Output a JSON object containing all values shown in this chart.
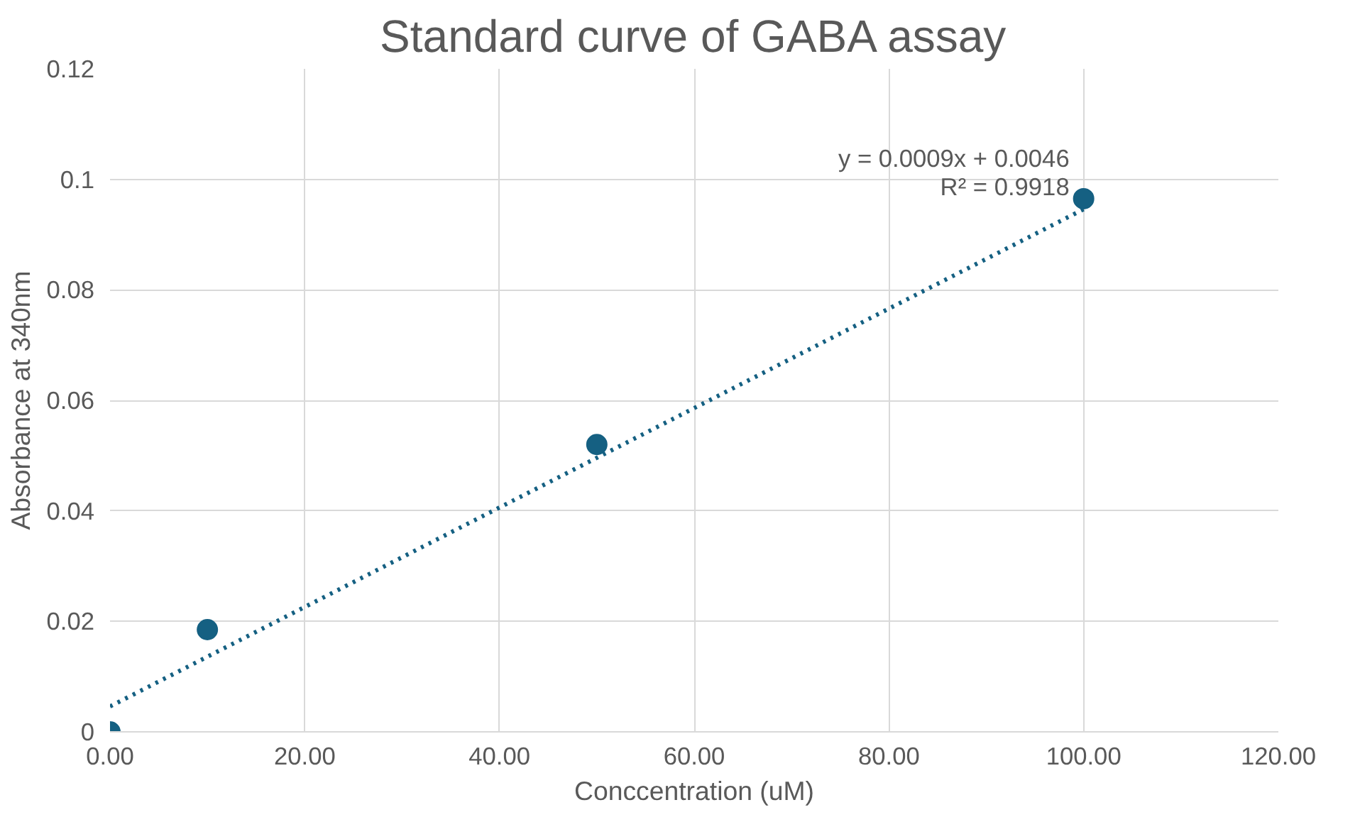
{
  "chart_data": {
    "type": "scatter",
    "title": "Standard curve of GABA assay",
    "xlabel": "Conccentration (uM)",
    "ylabel": "Absorbance at 340nm",
    "x": [
      0,
      10,
      50,
      100
    ],
    "series": [
      {
        "color": "#156082",
        "marker": "circle",
        "values": [
          0,
          0.0185,
          0.052,
          0.0965
        ]
      },
      {
        "type": "line",
        "color": "#156082",
        "line_style": "dotted",
        "marker": "none",
        "x": [
          0,
          100
        ],
        "values": [
          0.0046,
          0.0946
        ]
      }
    ],
    "annotations": [
      {
        "text": "y = 0.0009x + 0.0046",
        "x": 100,
        "y": 0.0946
      },
      {
        "text": "R² = 0.9918",
        "x": 100,
        "y": 0.0946
      }
    ],
    "xlim": [
      0,
      120
    ],
    "ylim": [
      0,
      0.12
    ],
    "xticks": [
      {
        "value": 0,
        "label": "0.00"
      },
      {
        "value": 20,
        "label": "20.00"
      },
      {
        "value": 40,
        "label": "40.00"
      },
      {
        "value": 60,
        "label": "60.00"
      },
      {
        "value": 80,
        "label": "80.00"
      },
      {
        "value": 100,
        "label": "100.00"
      },
      {
        "value": 120,
        "label": "120.00"
      }
    ],
    "yticks": [
      0,
      0.02,
      0.04,
      0.06,
      0.08,
      0.1,
      0.12
    ],
    "grid": true
  }
}
